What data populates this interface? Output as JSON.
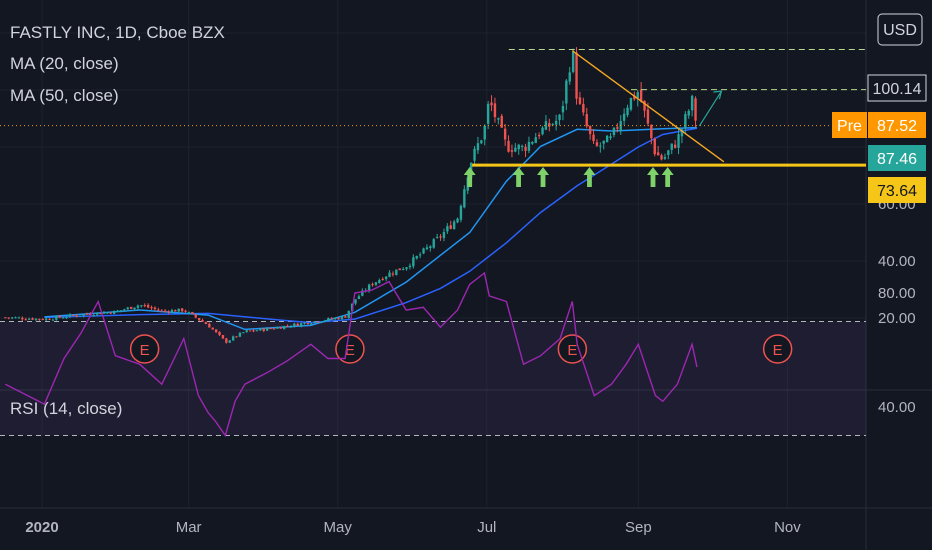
{
  "legend": {
    "title": "FASTLY INC, 1D, Cboe BZX",
    "ma20": "MA (20, close)",
    "ma50": "MA (50, close)",
    "rsi": "RSI (14, close)"
  },
  "currency_button": "USD",
  "price_tags": [
    {
      "value": "100.14",
      "kind": "level",
      "color": "#131722",
      "text_color": "#d1d4dc",
      "border": "#d1d4dc"
    },
    {
      "value": "87.52",
      "kind": "pre",
      "prefix": "Pre",
      "color": "#ff9800",
      "text_color": "#ffffff"
    },
    {
      "value": "87.46",
      "kind": "last",
      "color": "#26a69a",
      "text_color": "#ffffff"
    },
    {
      "value": "73.64",
      "kind": "support",
      "color": "#f5c518",
      "text_color": "#131722"
    }
  ],
  "chart_data": {
    "type": "candlestick",
    "title": "FASTLY INC, 1D, Cboe BZX",
    "y_ticks": [
      "20.00",
      "40.00",
      "60.00"
    ],
    "x_ticks": [
      "2020",
      "Mar",
      "May",
      "Jul",
      "Sep",
      "Nov"
    ],
    "rsi_ticks": [
      "80.00",
      "40.00"
    ],
    "earnings_marker": "E",
    "earnings_dates": [
      "2020-02-12",
      "2020-05-06",
      "2020-08-05",
      "2020-10-28"
    ],
    "ylim": [
      0,
      120
    ],
    "ohlc": [
      {
        "date": "2019-12-17",
        "c": 20.2
      },
      {
        "date": "2020-01-02",
        "c": 19.6
      },
      {
        "date": "2020-01-17",
        "c": 21.2
      },
      {
        "date": "2020-01-31",
        "c": 22.2
      },
      {
        "date": "2020-02-10",
        "c": 24.6
      },
      {
        "date": "2020-02-19",
        "c": 22.4
      },
      {
        "date": "2020-02-28",
        "c": 22.8
      },
      {
        "date": "2020-03-09",
        "c": 17.5
      },
      {
        "date": "2020-03-16",
        "c": 11.6
      },
      {
        "date": "2020-03-24",
        "c": 15.2
      },
      {
        "date": "2020-04-06",
        "c": 16.6
      },
      {
        "date": "2020-04-20",
        "c": 18.6
      },
      {
        "date": "2020-05-04",
        "c": 20.4
      },
      {
        "date": "2020-05-08",
        "c": 26.4
      },
      {
        "date": "2020-05-15",
        "c": 32.0
      },
      {
        "date": "2020-05-22",
        "c": 35.6
      },
      {
        "date": "2020-05-29",
        "c": 38.2
      },
      {
        "date": "2020-06-05",
        "c": 43.2
      },
      {
        "date": "2020-06-12",
        "c": 48.6
      },
      {
        "date": "2020-06-19",
        "c": 55.2
      },
      {
        "date": "2020-06-24",
        "c": 74.0
      },
      {
        "date": "2020-06-30",
        "c": 86.0
      },
      {
        "date": "2020-07-02",
        "c": 96.4
      },
      {
        "date": "2020-07-09",
        "c": 80.2
      },
      {
        "date": "2020-07-16",
        "c": 79.6
      },
      {
        "date": "2020-07-23",
        "c": 85.6
      },
      {
        "date": "2020-07-31",
        "c": 90.0
      },
      {
        "date": "2020-08-05",
        "c": 114.2
      },
      {
        "date": "2020-08-07",
        "c": 96.4
      },
      {
        "date": "2020-08-14",
        "c": 79.4
      },
      {
        "date": "2020-08-21",
        "c": 82.6
      },
      {
        "date": "2020-08-27",
        "c": 94.6
      },
      {
        "date": "2020-09-01",
        "c": 99.6
      },
      {
        "date": "2020-09-08",
        "c": 77.8
      },
      {
        "date": "2020-09-11",
        "c": 75.6
      },
      {
        "date": "2020-09-17",
        "c": 82.4
      },
      {
        "date": "2020-09-23",
        "c": 96.0
      },
      {
        "date": "2020-09-25",
        "c": 87.46
      }
    ],
    "ma20": [
      {
        "date": "2020-01-02",
        "v": 20.4
      },
      {
        "date": "2020-02-10",
        "v": 22.8
      },
      {
        "date": "2020-03-09",
        "v": 21.0
      },
      {
        "date": "2020-03-24",
        "v": 16.0
      },
      {
        "date": "2020-04-20",
        "v": 17.4
      },
      {
        "date": "2020-05-08",
        "v": 22.0
      },
      {
        "date": "2020-05-29",
        "v": 32.6
      },
      {
        "date": "2020-06-12",
        "v": 42.0
      },
      {
        "date": "2020-06-24",
        "v": 50.0
      },
      {
        "date": "2020-07-09",
        "v": 68.0
      },
      {
        "date": "2020-07-23",
        "v": 80.2
      },
      {
        "date": "2020-08-07",
        "v": 86.2
      },
      {
        "date": "2020-08-21",
        "v": 85.6
      },
      {
        "date": "2020-09-01",
        "v": 86.0
      },
      {
        "date": "2020-09-11",
        "v": 86.4
      },
      {
        "date": "2020-09-25",
        "v": 86.8
      }
    ],
    "ma50": [
      {
        "date": "2020-01-02",
        "v": 20.2
      },
      {
        "date": "2020-02-10",
        "v": 21.2
      },
      {
        "date": "2020-03-09",
        "v": 21.6
      },
      {
        "date": "2020-04-06",
        "v": 19.4
      },
      {
        "date": "2020-04-20",
        "v": 18.4
      },
      {
        "date": "2020-05-08",
        "v": 19.6
      },
      {
        "date": "2020-05-29",
        "v": 25.4
      },
      {
        "date": "2020-06-12",
        "v": 30.4
      },
      {
        "date": "2020-06-24",
        "v": 36.4
      },
      {
        "date": "2020-07-09",
        "v": 46.4
      },
      {
        "date": "2020-07-23",
        "v": 57.0
      },
      {
        "date": "2020-08-07",
        "v": 66.4
      },
      {
        "date": "2020-08-21",
        "v": 74.0
      },
      {
        "date": "2020-09-01",
        "v": 80.0
      },
      {
        "date": "2020-09-11",
        "v": 84.4
      },
      {
        "date": "2020-09-25",
        "v": 86.6
      }
    ],
    "rsi": [
      {
        "date": "2019-12-17",
        "v": 48
      },
      {
        "date": "2020-01-02",
        "v": 41
      },
      {
        "date": "2020-01-10",
        "v": 57
      },
      {
        "date": "2020-01-17",
        "v": 66
      },
      {
        "date": "2020-01-24",
        "v": 77
      },
      {
        "date": "2020-01-31",
        "v": 58
      },
      {
        "date": "2020-02-10",
        "v": 55
      },
      {
        "date": "2020-02-19",
        "v": 48
      },
      {
        "date": "2020-02-28",
        "v": 64
      },
      {
        "date": "2020-03-05",
        "v": 44
      },
      {
        "date": "2020-03-09",
        "v": 38
      },
      {
        "date": "2020-03-12",
        "v": 35
      },
      {
        "date": "2020-03-16",
        "v": 30
      },
      {
        "date": "2020-03-20",
        "v": 42
      },
      {
        "date": "2020-03-24",
        "v": 48
      },
      {
        "date": "2020-04-02",
        "v": 52
      },
      {
        "date": "2020-04-10",
        "v": 56
      },
      {
        "date": "2020-04-20",
        "v": 62
      },
      {
        "date": "2020-04-27",
        "v": 57
      },
      {
        "date": "2020-05-04",
        "v": 57
      },
      {
        "date": "2020-05-08",
        "v": 80
      },
      {
        "date": "2020-05-15",
        "v": 81
      },
      {
        "date": "2020-05-22",
        "v": 84
      },
      {
        "date": "2020-05-29",
        "v": 74
      },
      {
        "date": "2020-06-05",
        "v": 75
      },
      {
        "date": "2020-06-12",
        "v": 68
      },
      {
        "date": "2020-06-19",
        "v": 74
      },
      {
        "date": "2020-06-24",
        "v": 83
      },
      {
        "date": "2020-06-30",
        "v": 87
      },
      {
        "date": "2020-07-02",
        "v": 79
      },
      {
        "date": "2020-07-09",
        "v": 77
      },
      {
        "date": "2020-07-16",
        "v": 55
      },
      {
        "date": "2020-07-23",
        "v": 58
      },
      {
        "date": "2020-07-31",
        "v": 64
      },
      {
        "date": "2020-08-05",
        "v": 77
      },
      {
        "date": "2020-08-07",
        "v": 62
      },
      {
        "date": "2020-08-14",
        "v": 44
      },
      {
        "date": "2020-08-21",
        "v": 48
      },
      {
        "date": "2020-08-27",
        "v": 55
      },
      {
        "date": "2020-09-01",
        "v": 62
      },
      {
        "date": "2020-09-08",
        "v": 44
      },
      {
        "date": "2020-09-11",
        "v": 42
      },
      {
        "date": "2020-09-17",
        "v": 48
      },
      {
        "date": "2020-09-23",
        "v": 62
      },
      {
        "date": "2020-09-25",
        "v": 54
      }
    ],
    "rsi_bands": [
      70,
      30
    ],
    "support_level": 73.64,
    "resistance_level": 100.14,
    "pre_market": 87.52,
    "last_price": 87.46
  },
  "colors": {
    "up": "#26a69a",
    "down": "#ef5350",
    "ma20": "#2196f3",
    "ma50": "#2962ff",
    "rsi": "#9c27b0",
    "support": "#f5c518",
    "trend": "#f5a623",
    "arrow": "#7fd16a",
    "earnings": "#ef5350"
  }
}
